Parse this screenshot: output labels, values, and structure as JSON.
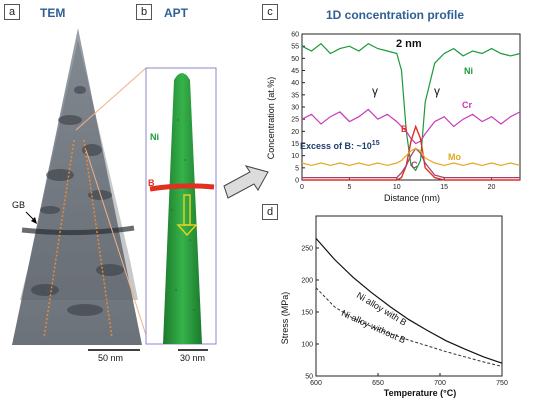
{
  "panel_a": {
    "letter": "a",
    "title": "TEM",
    "gb_label": "GB",
    "scale": "50 nm"
  },
  "panel_b": {
    "letter": "b",
    "title": "APT",
    "ni_label": "Ni",
    "b_label": "B",
    "scale": "30 nm"
  },
  "panel_c": {
    "letter": "c",
    "title": "1D concentration profile",
    "annotation_width": "2 nm",
    "gamma_left": "γ",
    "gamma_right": "γ",
    "excess_text": "Excess of B: ~10",
    "excess_sup": "15",
    "series_labels": {
      "ni": "Ni",
      "cr": "Cr",
      "b": "B",
      "c": "C",
      "mo": "Mo"
    }
  },
  "panel_d": {
    "letter": "d",
    "curve_label_with": "Ni alloy with B",
    "curve_label_without": "Ni alloy without B"
  },
  "colors": {
    "ni": "#1a9a3a",
    "cr": "#c838b8",
    "b": "#e03020",
    "c": "#a04070",
    "mo": "#e0a820",
    "title": "#2f5f94"
  },
  "chart_data": [
    {
      "type": "line",
      "title": "1D concentration profile",
      "xlabel": "Distance (nm)",
      "ylabel": "Concentration (at.%)",
      "xlim": [
        0,
        23
      ],
      "ylim": [
        0,
        60
      ],
      "xticks": [
        0,
        5,
        10,
        15,
        20
      ],
      "yticks": [
        0,
        5,
        10,
        15,
        20,
        25,
        30,
        35,
        40,
        45,
        50,
        55,
        60
      ],
      "x": [
        0,
        1,
        2,
        3,
        4,
        5,
        6,
        7,
        8,
        9,
        10,
        10.5,
        11,
        11.5,
        12,
        12.5,
        13,
        14,
        15,
        16,
        17,
        18,
        19,
        20,
        21,
        22,
        23
      ],
      "series": [
        {
          "name": "Ni",
          "values": [
            55,
            53,
            56,
            52,
            54,
            55,
            53,
            56,
            54,
            53,
            52,
            45,
            20,
            6,
            4,
            8,
            32,
            48,
            52,
            54,
            51,
            53,
            52,
            54,
            52,
            51,
            52
          ]
        },
        {
          "name": "Cr",
          "values": [
            25,
            27,
            23,
            26,
            28,
            24,
            26,
            29,
            25,
            27,
            24,
            22,
            20,
            17,
            15,
            16,
            19,
            24,
            26,
            22,
            25,
            27,
            24,
            26,
            23,
            26,
            28
          ]
        },
        {
          "name": "B",
          "values": [
            0,
            0,
            0,
            0,
            0,
            0,
            0,
            0,
            0,
            0,
            0,
            1,
            6,
            16,
            22,
            17,
            5,
            1,
            0,
            0,
            0,
            0,
            0,
            0,
            0,
            0,
            0
          ]
        },
        {
          "name": "C",
          "values": [
            1,
            1,
            1,
            1,
            1,
            1,
            1,
            1,
            1,
            1,
            1,
            3,
            6,
            10,
            13,
            11,
            7,
            2,
            1,
            1,
            1,
            1,
            1,
            1,
            1,
            1,
            1
          ]
        },
        {
          "name": "Mo",
          "values": [
            7,
            6,
            7,
            6,
            7,
            6,
            7,
            6,
            7,
            6,
            7,
            8,
            10,
            12,
            13,
            12,
            9,
            7,
            6,
            7,
            6,
            7,
            6,
            7,
            6,
            7,
            6
          ]
        }
      ]
    },
    {
      "type": "line",
      "xlabel": "Temperature (°C)",
      "ylabel": "Stress (MPa)",
      "xlim": [
        600,
        750
      ],
      "ylim": [
        50,
        300
      ],
      "xticks": [
        600,
        650,
        700,
        750
      ],
      "yticks": [
        50,
        100,
        150,
        200,
        250
      ],
      "x": [
        600,
        615,
        630,
        645,
        660,
        675,
        690,
        705,
        720,
        735,
        750
      ],
      "series": [
        {
          "name": "Ni alloy with B",
          "values": [
            265,
            232,
            204,
            180,
            158,
            138,
            121,
            105,
            92,
            80,
            70
          ]
        },
        {
          "name": "Ni alloy without B",
          "values": [
            188,
            158,
            140,
            127,
            116,
            106,
            97,
            88,
            80,
            72,
            65
          ]
        }
      ]
    }
  ]
}
